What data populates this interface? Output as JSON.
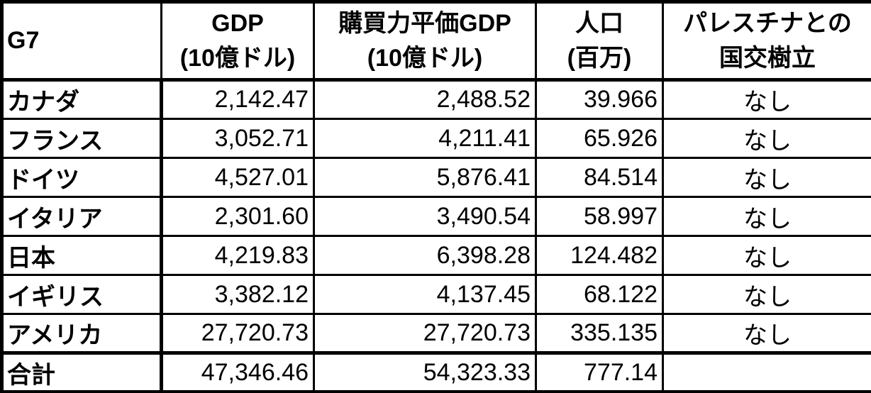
{
  "colors": {
    "text": "#000000",
    "border": "#000000",
    "background": "#ffffff"
  },
  "table": {
    "header": {
      "g7": "G7",
      "gdp_line1": "GDP",
      "gdp_line2": "(10億ドル)",
      "ppp_line1": "購買力平価GDP",
      "ppp_line2": "(10億ドル)",
      "pop_line1": "人口",
      "pop_line2": "(百万)",
      "palestine_line1": "パレスチナとの",
      "palestine_line2": "国交樹立"
    },
    "rows": [
      {
        "name": "カナダ",
        "gdp": "2,142.47",
        "ppp": "2,488.52",
        "pop": "39.966",
        "palestine": "なし"
      },
      {
        "name": "フランス",
        "gdp": "3,052.71",
        "ppp": "4,211.41",
        "pop": "65.926",
        "palestine": "なし"
      },
      {
        "name": "ドイツ",
        "gdp": "4,527.01",
        "ppp": "5,876.41",
        "pop": "84.514",
        "palestine": "なし"
      },
      {
        "name": "イタリア",
        "gdp": "2,301.60",
        "ppp": "3,490.54",
        "pop": "58.997",
        "palestine": "なし"
      },
      {
        "name": "日本",
        "gdp": "4,219.83",
        "ppp": "6,398.28",
        "pop": "124.482",
        "palestine": "なし"
      },
      {
        "name": "イギリス",
        "gdp": "3,382.12",
        "ppp": "4,137.45",
        "pop": "68.122",
        "palestine": "なし"
      },
      {
        "name": "アメリカ",
        "gdp": "27,720.73",
        "ppp": "27,720.73",
        "pop": "335.135",
        "palestine": "なし"
      },
      {
        "name": "合計",
        "gdp": "47,346.46",
        "ppp": "54,323.33",
        "pop": "777.14",
        "palestine": ""
      }
    ]
  },
  "chart_data": {
    "type": "table",
    "title": "",
    "columns": [
      "G7",
      "GDP(10億ドル)",
      "購買力平価GDP(10億ドル)",
      "人口(百万)",
      "パレスチナとの国交樹立"
    ],
    "rows": [
      [
        "カナダ",
        2142.47,
        2488.52,
        39.966,
        "なし"
      ],
      [
        "フランス",
        3052.71,
        4211.41,
        65.926,
        "なし"
      ],
      [
        "ドイツ",
        4527.01,
        5876.41,
        84.514,
        "なし"
      ],
      [
        "イタリア",
        2301.6,
        3490.54,
        58.997,
        "なし"
      ],
      [
        "日本",
        4219.83,
        6398.28,
        124.482,
        "なし"
      ],
      [
        "イギリス",
        3382.12,
        4137.45,
        68.122,
        "なし"
      ],
      [
        "アメリカ",
        27720.73,
        27720.73,
        335.135,
        "なし"
      ],
      [
        "合計",
        47346.46,
        54323.33,
        777.14,
        ""
      ]
    ]
  }
}
